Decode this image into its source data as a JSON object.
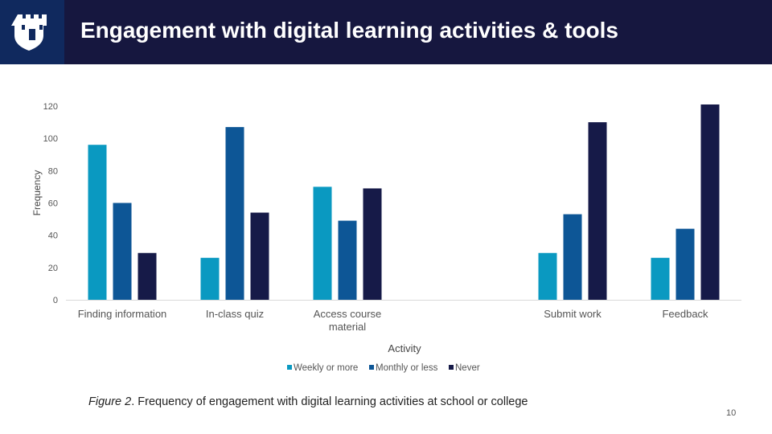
{
  "header": {
    "title": "Engagement with digital learning activities & tools",
    "logo": "castle-logo-icon",
    "colors": {
      "background": "#16173f",
      "logo_background": "#10295e"
    }
  },
  "chart_data": {
    "type": "bar",
    "categories": [
      "Finding information",
      "In-class quiz",
      "Access course material",
      "",
      "Submit work",
      "Feedback"
    ],
    "series": [
      {
        "name": "Weekly or more",
        "color": "#0a99c1",
        "values": [
          96,
          26,
          70,
          null,
          29,
          26
        ]
      },
      {
        "name": "Monthly or less",
        "color": "#0d5696",
        "values": [
          60,
          107,
          49,
          null,
          53,
          44
        ]
      },
      {
        "name": "Never",
        "color": "#161a48",
        "values": [
          29,
          54,
          69,
          null,
          110,
          121
        ]
      }
    ],
    "xlabel": "Activity",
    "ylabel": "Frequency",
    "ylim": [
      0,
      120
    ],
    "yticks": [
      "0",
      "20",
      "40",
      "60",
      "80",
      "100",
      "120"
    ],
    "grid": false,
    "legend_position": "bottom"
  },
  "caption": {
    "label": "Figure 2",
    "text": ". Frequency of engagement with digital learning activities at school or college"
  },
  "page_number": "10"
}
